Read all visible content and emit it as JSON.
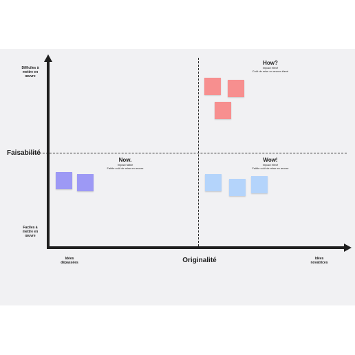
{
  "axes": {
    "y_title": "Faisabilité",
    "x_title": "Originalité",
    "y_top_label": [
      "Difficiles à",
      "mettre en",
      "œuvre"
    ],
    "y_bottom_label": [
      "Faciles à",
      "mettre en",
      "œuvre"
    ],
    "x_left_label": [
      "Idées",
      "dépassées"
    ],
    "x_right_label": [
      "Idées",
      "novatrices"
    ]
  },
  "quadrants": {
    "how": {
      "title": "How?",
      "line1": "Impact élevé",
      "line2": "Coût de mise en œuvre élevé"
    },
    "now": {
      "title": "Now.",
      "line1": "Impact faible",
      "line2": "Faible coût de mise en œuvre"
    },
    "wow": {
      "title": "Wow!",
      "line1": "Impact élevé",
      "line2": "Faible coût de mise en œuvre"
    }
  },
  "colors": {
    "how_notes": "#f78f8f",
    "now_notes": "#9d99f5",
    "wow_notes": "#b4d4fb",
    "axis": "#1f1f1f",
    "board": "#f1f1f3"
  },
  "sticky_notes": {
    "how": 3,
    "now": 2,
    "wow": 3
  }
}
